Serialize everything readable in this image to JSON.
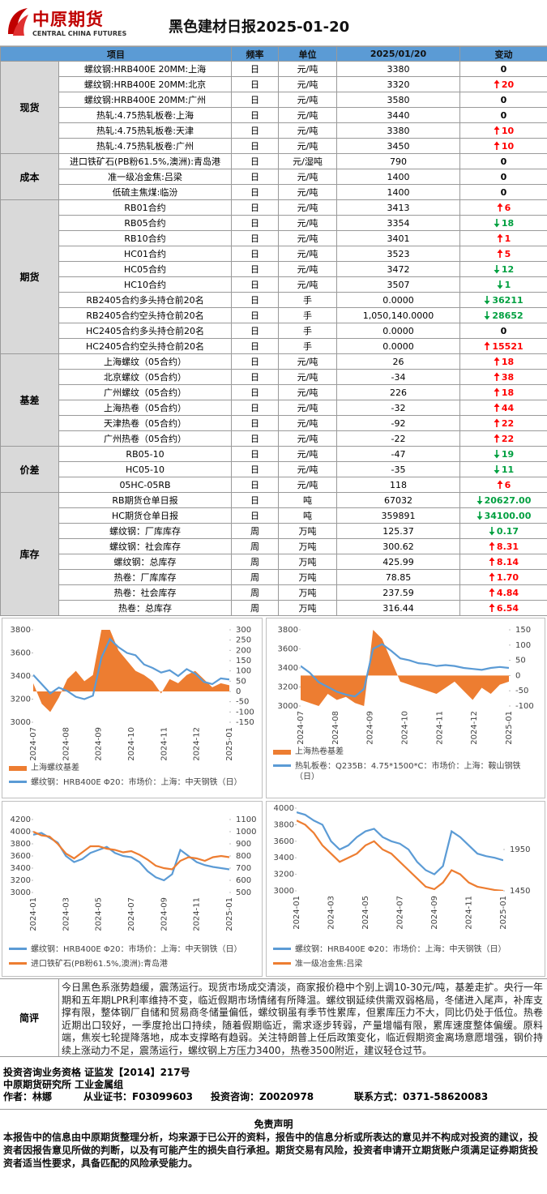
{
  "header": {
    "logo_cn": "中原期货",
    "logo_en": "CENTRAL CHINA FUTURES",
    "title": "黑色建材日报2025-01-20"
  },
  "table": {
    "header": [
      "项目",
      "频率",
      "单位",
      "2025/01/20",
      "变动"
    ],
    "groups": [
      {
        "name": "现货",
        "rows": [
          {
            "item": "螺纹钢:HRB400E 20MM:上海",
            "freq": "日",
            "unit": "元/吨",
            "value": "3380",
            "change": "0"
          },
          {
            "item": "螺纹钢:HRB400E 20MM:北京",
            "freq": "日",
            "unit": "元/吨",
            "value": "3320",
            "change": "20",
            "dir": "up"
          },
          {
            "item": "螺纹钢:HRB400E 20MM:广州",
            "freq": "日",
            "unit": "元/吨",
            "value": "3580",
            "change": "0"
          },
          {
            "item": "热轧:4.75热轧板卷:上海",
            "freq": "日",
            "unit": "元/吨",
            "value": "3440",
            "change": "0"
          },
          {
            "item": "热轧:4.75热轧板卷:天津",
            "freq": "日",
            "unit": "元/吨",
            "value": "3380",
            "change": "10",
            "dir": "up"
          },
          {
            "item": "热轧:4.75热轧板卷:广州",
            "freq": "日",
            "unit": "元/吨",
            "value": "3450",
            "change": "10",
            "dir": "up"
          }
        ]
      },
      {
        "name": "成本",
        "rows": [
          {
            "item": "进口铁矿石(PB粉61.5%,澳洲):青岛港",
            "freq": "日",
            "unit": "元/湿吨",
            "value": "790",
            "change": "0"
          },
          {
            "item": "准一级冶金焦:吕梁",
            "freq": "日",
            "unit": "元/吨",
            "value": "1400",
            "change": "0"
          },
          {
            "item": "低硫主焦煤:临汾",
            "freq": "日",
            "unit": "元/吨",
            "value": "1400",
            "change": "0"
          }
        ]
      },
      {
        "name": "期货",
        "rows": [
          {
            "item": "RB01合约",
            "freq": "日",
            "unit": "元/吨",
            "value": "3413",
            "change": "6",
            "dir": "up"
          },
          {
            "item": "RB05合约",
            "freq": "日",
            "unit": "元/吨",
            "value": "3354",
            "change": "18",
            "dir": "down"
          },
          {
            "item": "RB10合约",
            "freq": "日",
            "unit": "元/吨",
            "value": "3401",
            "change": "1",
            "dir": "up"
          },
          {
            "item": "HC01合约",
            "freq": "日",
            "unit": "元/吨",
            "value": "3523",
            "change": "5",
            "dir": "up"
          },
          {
            "item": "HC05合约",
            "freq": "日",
            "unit": "元/吨",
            "value": "3472",
            "change": "12",
            "dir": "down"
          },
          {
            "item": "HC10合约",
            "freq": "日",
            "unit": "元/吨",
            "value": "3507",
            "change": "1",
            "dir": "down"
          },
          {
            "item": "RB2405合约多头持仓前20名",
            "freq": "日",
            "unit": "手",
            "value": "0.0000",
            "change": "36211",
            "dir": "down"
          },
          {
            "item": "RB2405合约空头持仓前20名",
            "freq": "日",
            "unit": "手",
            "value": "1,050,140.0000",
            "change": "28652",
            "dir": "down"
          },
          {
            "item": "HC2405合约多头持仓前20名",
            "freq": "日",
            "unit": "手",
            "value": "0.0000",
            "change": "0"
          },
          {
            "item": "HC2405合约空头持仓前20名",
            "freq": "日",
            "unit": "手",
            "value": "0.0000",
            "change": "15521",
            "dir": "up"
          }
        ]
      },
      {
        "name": "基差",
        "rows": [
          {
            "item": "上海螺纹（05合约）",
            "freq": "日",
            "unit": "元/吨",
            "value": "26",
            "change": "18",
            "dir": "up"
          },
          {
            "item": "北京螺纹（05合约）",
            "freq": "日",
            "unit": "元/吨",
            "value": "-34",
            "change": "38",
            "dir": "up"
          },
          {
            "item": "广州螺纹（05合约）",
            "freq": "日",
            "unit": "元/吨",
            "value": "226",
            "change": "18",
            "dir": "up"
          },
          {
            "item": "上海热卷（05合约）",
            "freq": "日",
            "unit": "元/吨",
            "value": "-32",
            "change": "44",
            "dir": "up"
          },
          {
            "item": "天津热卷（05合约）",
            "freq": "日",
            "unit": "元/吨",
            "value": "-92",
            "change": "22",
            "dir": "up"
          },
          {
            "item": "广州热卷（05合约）",
            "freq": "日",
            "unit": "元/吨",
            "value": "-22",
            "change": "22",
            "dir": "up"
          }
        ]
      },
      {
        "name": "价差",
        "rows": [
          {
            "item": "RB05-10",
            "freq": "日",
            "unit": "元/吨",
            "value": "-47",
            "change": "19",
            "dir": "down"
          },
          {
            "item": "HC05-10",
            "freq": "日",
            "unit": "元/吨",
            "value": "-35",
            "change": "11",
            "dir": "down"
          },
          {
            "item": "05HC-05RB",
            "freq": "日",
            "unit": "元/吨",
            "value": "118",
            "change": "6",
            "dir": "up"
          }
        ]
      },
      {
        "name": "库存",
        "rows": [
          {
            "item": "RB期货仓单日报",
            "freq": "日",
            "unit": "吨",
            "value": "67032",
            "change": "20627.00",
            "dir": "down"
          },
          {
            "item": "HC期货仓单日报",
            "freq": "日",
            "unit": "吨",
            "value": "359891",
            "change": "34100.00",
            "dir": "down"
          },
          {
            "item": "螺纹钢：厂库库存",
            "freq": "周",
            "unit": "万吨",
            "value": "125.37",
            "change": "0.17",
            "dir": "down"
          },
          {
            "item": "螺纹钢：社会库存",
            "freq": "周",
            "unit": "万吨",
            "value": "300.62",
            "change": "8.31",
            "dir": "up"
          },
          {
            "item": "螺纹钢：总库存",
            "freq": "周",
            "unit": "万吨",
            "value": "425.99",
            "change": "8.14",
            "dir": "up"
          },
          {
            "item": "热卷：厂库库存",
            "freq": "周",
            "unit": "万吨",
            "value": "78.85",
            "change": "1.70",
            "dir": "up"
          },
          {
            "item": "热卷：社会库存",
            "freq": "周",
            "unit": "万吨",
            "value": "237.59",
            "change": "4.84",
            "dir": "up"
          },
          {
            "item": "热卷：总库存",
            "freq": "周",
            "unit": "万吨",
            "value": "316.44",
            "change": "6.54",
            "dir": "up"
          }
        ]
      }
    ]
  },
  "charts": [
    {
      "type": "line",
      "ylim": [
        3000,
        3800
      ],
      "yticks": [
        3000,
        3200,
        3400,
        3600,
        3800
      ],
      "y2lim": [
        -150,
        300
      ],
      "y2ticks": [
        -150,
        -100,
        -50,
        0,
        50,
        100,
        150,
        200,
        250,
        300
      ],
      "xticks": [
        "2024-07",
        "2024-08",
        "2024-09",
        "2024-10",
        "2024-11",
        "2024-12",
        "2025-01"
      ],
      "series": [
        {
          "name": "上海螺纹基差",
          "type": "area",
          "axis": "y2",
          "color": "#ed7d31",
          "values": [
            40,
            -60,
            -100,
            -30,
            60,
            100,
            50,
            80,
            300,
            300,
            200,
            150,
            100,
            80,
            50,
            -10,
            60,
            40,
            80,
            100,
            60,
            20,
            40,
            30
          ]
        },
        {
          "name": "螺纹钢：HRB400E  Φ20：市场价：上海：中天钢铁（日）",
          "type": "line",
          "color": "#5b9bd5",
          "values": [
            3410,
            3330,
            3250,
            3300,
            3270,
            3220,
            3200,
            3230,
            3560,
            3720,
            3650,
            3600,
            3580,
            3500,
            3470,
            3430,
            3450,
            3400,
            3460,
            3420,
            3350,
            3330,
            3380,
            3370
          ]
        }
      ]
    },
    {
      "type": "line",
      "ylim": [
        3000,
        3800
      ],
      "yticks": [
        3000,
        3200,
        3400,
        3600,
        3800
      ],
      "y2lim": [
        -100,
        150
      ],
      "y2ticks": [
        -100,
        -50,
        0,
        50,
        100,
        150
      ],
      "xticks": [
        "2024-07",
        "2024-08",
        "2024-09",
        "2024-10",
        "2024-11",
        "2024-12",
        "2025-01"
      ],
      "series": [
        {
          "name": "上海热卷基差",
          "type": "area",
          "axis": "y2",
          "color": "#ed7d31",
          "values": [
            -80,
            -90,
            -100,
            -60,
            -80,
            -70,
            -90,
            -100,
            150,
            120,
            50,
            -20,
            -30,
            -40,
            -50,
            -60,
            -40,
            -20,
            -50,
            -80,
            -40,
            -60,
            -30,
            -20
          ]
        },
        {
          "name": "热轧板卷：Q235B：4.75*1500*C：市场价：上海：鞍山钢铁（日）",
          "type": "line",
          "color": "#5b9bd5",
          "values": [
            3420,
            3350,
            3250,
            3200,
            3150,
            3120,
            3100,
            3180,
            3600,
            3650,
            3580,
            3500,
            3480,
            3450,
            3440,
            3420,
            3430,
            3420,
            3400,
            3390,
            3380,
            3400,
            3410,
            3400
          ]
        }
      ]
    },
    {
      "type": "line",
      "ylim": [
        3000,
        4200
      ],
      "yticks": [
        3000,
        3200,
        3400,
        3600,
        3800,
        4000,
        4200
      ],
      "y2lim": [
        500,
        1100
      ],
      "y2ticks": [
        500,
        600,
        700,
        800,
        900,
        1000,
        1100
      ],
      "xticks": [
        "2024-01",
        "2024-03",
        "2024-05",
        "2024-07",
        "2024-09",
        "2024-11",
        "2025-01"
      ],
      "series": [
        {
          "name": "螺纹钢：HRB400E  Φ20：市场价：上海：中天钢铁（日）",
          "type": "line",
          "color": "#5b9bd5",
          "values": [
            3950,
            3980,
            3900,
            3820,
            3600,
            3500,
            3550,
            3650,
            3700,
            3750,
            3650,
            3600,
            3580,
            3500,
            3350,
            3250,
            3200,
            3300,
            3700,
            3600,
            3500,
            3450,
            3420,
            3400,
            3380
          ]
        },
        {
          "name": "进口铁矿石(PB粉61.5%,澳洲):青岛港",
          "type": "line",
          "axis": "y2",
          "color": "#ed7d31",
          "values": [
            1000,
            970,
            960,
            900,
            820,
            780,
            830,
            880,
            880,
            860,
            850,
            830,
            840,
            810,
            770,
            720,
            700,
            690,
            760,
            790,
            780,
            760,
            790,
            800,
            790
          ]
        }
      ]
    },
    {
      "type": "line",
      "ylim": [
        3000,
        4000
      ],
      "yticks": [
        3000,
        3200,
        3400,
        3600,
        3800,
        4000
      ],
      "y2lim": [
        1450,
        2450
      ],
      "y2ticks": [
        1450,
        1950
      ],
      "xticks": [
        "2024-01",
        "2024-03",
        "2024-05",
        "2024-07",
        "2024-09",
        "2024-11",
        "2025-01"
      ],
      "series": [
        {
          "name": "螺纹钢：HRB400E  Φ20：市场价：上海：中天钢铁（日）",
          "type": "line",
          "color": "#5b9bd5",
          "values": [
            3950,
            3920,
            3850,
            3800,
            3600,
            3500,
            3550,
            3650,
            3720,
            3750,
            3650,
            3600,
            3570,
            3500,
            3350,
            3250,
            3200,
            3300,
            3720,
            3650,
            3550,
            3450,
            3420,
            3400,
            3370
          ]
        },
        {
          "name": "准一级冶金焦:吕梁",
          "type": "line",
          "axis": "y2",
          "color": "#ed7d31",
          "values": [
            2300,
            2250,
            2150,
            2000,
            1900,
            1800,
            1850,
            1900,
            2000,
            2050,
            1950,
            1900,
            1800,
            1700,
            1600,
            1500,
            1470,
            1550,
            1700,
            1650,
            1550,
            1500,
            1480,
            1460,
            1450
          ]
        }
      ]
    }
  ],
  "review": {
    "label": "简评",
    "text": "今日黑色系涨势趋缓，震荡运行。现货市场成交清淡，商家报价稳中个别上调10-30元/吨，基差走扩。央行一年期和五年期LPR利率维持不变，临近假期市场情绪有所降温。螺纹钢延续供需双弱格局，冬储进入尾声，补库支撑有限，整体钢厂自储和贸易商冬储量偏低，螺纹钢虽有季节性累库，但累库压力不大，同比仍处于低位。热卷近期出口较好，一季度抢出口持续，随着假期临近，需求逐步转弱，产量增幅有限，累库速度整体偏缓。原料端，焦炭七轮提降落地，成本支撑略有趋弱。关注特朗普上任后政策变化，临近假期资金离场意愿增强，钢价持续上涨动力不足，震荡运行，螺纹钢上方压力3400，热卷3500附近，建议轻仓过节。"
  },
  "footer": {
    "qualification": "投资咨询业务资格   证监发【2014】217号",
    "dept": "中原期货研究所   工业金属组",
    "author": "作者：林娜",
    "cert": "从业证书：F03099603",
    "advisor": "投资咨询：Z0020978",
    "contact": "联系方式：0371-58620083"
  },
  "disclaimer": {
    "title": "免责声明",
    "text": "本报告中的信息由中原期货整理分析，均来源于已公开的资料，报告中的信息分析或所表达的意见并不构成对投资的建议，投资者因报告意见所做的判断，以及有可能产生的损失自行承担。期货交易有风险，投资者申请开立期货账户须满足证券期货投资者适当性要求，具备匹配的风险承受能力。"
  }
}
